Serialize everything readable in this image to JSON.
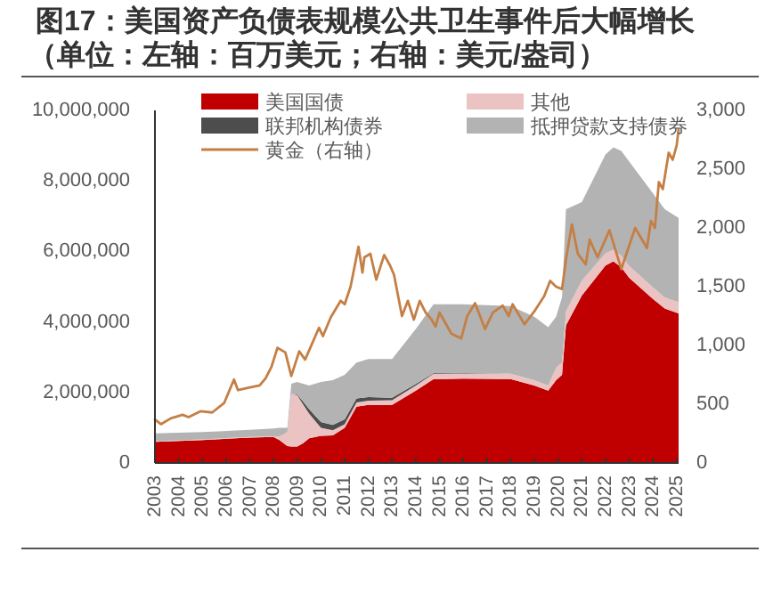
{
  "chart_data": {
    "type": "area",
    "stacked": true,
    "title": "图17：美国资产负债表规模公共卫生事件后大幅增长",
    "subtitle": "（单位：左轴：百万美元；右轴：美元/盎司）",
    "x": [
      "2003-01",
      "2005-01",
      "2007-01",
      "2008-01",
      "2008-04",
      "2008-08",
      "2008-10",
      "2009-01",
      "2009-04",
      "2009-07",
      "2010-01",
      "2010-07",
      "2011-01",
      "2011-07",
      "2012-01",
      "2013-01",
      "2014-01",
      "2014-10",
      "2016-01",
      "2018-01",
      "2019-01",
      "2019-08",
      "2019-12",
      "2020-03",
      "2020-05",
      "2021-01",
      "2022-01",
      "2022-05",
      "2022-09",
      "2023-01",
      "2024-01",
      "2024-07",
      "2025-02"
    ],
    "series": [
      {
        "name": "美国国债",
        "color": "#c00000",
        "values": [
          600000,
          650000,
          720000,
          740000,
          650000,
          480000,
          470000,
          470000,
          560000,
          700000,
          770000,
          780000,
          1000000,
          1600000,
          1650000,
          1650000,
          2050000,
          2380000,
          2390000,
          2380000,
          2200000,
          2050000,
          2350000,
          2500000,
          3900000,
          4750000,
          5600000,
          5720000,
          5550000,
          5250000,
          4650000,
          4380000,
          4240000
        ]
      },
      {
        "name": "其他",
        "color": "#ecc3c3",
        "values": [
          20000,
          20000,
          20000,
          20000,
          100000,
          400000,
          1500000,
          1450000,
          1100000,
          700000,
          230000,
          150000,
          100000,
          120000,
          120000,
          130000,
          150000,
          150000,
          150000,
          150000,
          150000,
          150000,
          350000,
          350000,
          400000,
          420000,
          350000,
          330000,
          330000,
          340000,
          330000,
          320000,
          320000
        ]
      },
      {
        "name": "联邦机构债券",
        "color": "#4d4d4d",
        "values": [
          0,
          0,
          0,
          0,
          0,
          0,
          0,
          20000,
          80000,
          130000,
          160000,
          150000,
          140000,
          110000,
          100000,
          70000,
          40000,
          20000,
          10000,
          0,
          0,
          0,
          0,
          0,
          0,
          0,
          0,
          0,
          0,
          0,
          0,
          0,
          0
        ]
      },
      {
        "name": "抵押贷款支持债券",
        "color": "#b3b3b3",
        "values": [
          220000,
          210000,
          200000,
          220000,
          250000,
          120000,
          280000,
          360000,
          510000,
          670000,
          1140000,
          1270000,
          1260000,
          1020000,
          1080000,
          1100000,
          1560000,
          1950000,
          1950000,
          1920000,
          1800000,
          1650000,
          1450000,
          1850000,
          2900000,
          2230000,
          2800000,
          2900000,
          2970000,
          2960000,
          2670000,
          2500000,
          2390000
        ]
      },
      {
        "name": "黄金（右轴）",
        "type": "line",
        "axis": "y2",
        "color": "#c47f45",
        "x": [
          "2003-01",
          "2003-04",
          "2003-09",
          "2004-03",
          "2004-06",
          "2004-12",
          "2005-06",
          "2005-12",
          "2006-05",
          "2006-07",
          "2006-12",
          "2007-06",
          "2007-09",
          "2007-12",
          "2008-03",
          "2008-07",
          "2008-10",
          "2009-02",
          "2009-05",
          "2009-12",
          "2010-02",
          "2010-06",
          "2010-11",
          "2011-01",
          "2011-04",
          "2011-08",
          "2011-10",
          "2011-11",
          "2012-02",
          "2012-05",
          "2012-09",
          "2012-12",
          "2013-02",
          "2013-06",
          "2013-09",
          "2013-12",
          "2014-03",
          "2014-06",
          "2014-09",
          "2014-11",
          "2015-01",
          "2015-07",
          "2015-12",
          "2016-03",
          "2016-07",
          "2016-12",
          "2017-04",
          "2017-09",
          "2017-12",
          "2018-02",
          "2018-08",
          "2019-01",
          "2019-06",
          "2019-09",
          "2019-12",
          "2020-03",
          "2020-05",
          "2020-08",
          "2020-11",
          "2021-03",
          "2021-05",
          "2021-09",
          "2022-03",
          "2022-09",
          "2023-04",
          "2023-10",
          "2023-12",
          "2024-02",
          "2024-04",
          "2024-06",
          "2024-09",
          "2024-11",
          "2025-01",
          "2025-02"
        ],
        "values": [
          370,
          330,
          380,
          410,
          390,
          440,
          430,
          510,
          710,
          620,
          640,
          660,
          720,
          820,
          980,
          940,
          740,
          950,
          880,
          1150,
          1080,
          1240,
          1380,
          1350,
          1500,
          1840,
          1620,
          1750,
          1780,
          1560,
          1770,
          1680,
          1600,
          1250,
          1380,
          1220,
          1380,
          1280,
          1220,
          1160,
          1280,
          1100,
          1060,
          1250,
          1360,
          1140,
          1280,
          1340,
          1250,
          1350,
          1180,
          1290,
          1420,
          1550,
          1500,
          1480,
          1730,
          2030,
          1780,
          1690,
          1900,
          1750,
          1980,
          1650,
          2000,
          1830,
          2060,
          2000,
          2390,
          2330,
          2640,
          2580,
          2700,
          2840
        ]
      }
    ],
    "xlim": [
      "2003-01",
      "2025-02"
    ],
    "xticks": [
      {
        "value": "2003-01",
        "label": "2003"
      },
      {
        "value": "2004-01",
        "label": "2004"
      },
      {
        "value": "2005-01",
        "label": "2005"
      },
      {
        "value": "2006-01",
        "label": "2006"
      },
      {
        "value": "2007-01",
        "label": "2007"
      },
      {
        "value": "2008-01",
        "label": "2008"
      },
      {
        "value": "2009-01",
        "label": "2009"
      },
      {
        "value": "2010-01",
        "label": "2010"
      },
      {
        "value": "2011-01",
        "label": "2011"
      },
      {
        "value": "2012-01",
        "label": "2012"
      },
      {
        "value": "2013-01",
        "label": "2013"
      },
      {
        "value": "2014-01",
        "label": "2014"
      },
      {
        "value": "2015-01",
        "label": "2015"
      },
      {
        "value": "2016-01",
        "label": "2016"
      },
      {
        "value": "2017-01",
        "label": "2017"
      },
      {
        "value": "2018-01",
        "label": "2018"
      },
      {
        "value": "2019-01",
        "label": "2019"
      },
      {
        "value": "2020-01",
        "label": "2020"
      },
      {
        "value": "2021-01",
        "label": "2021"
      },
      {
        "value": "2022-01",
        "label": "2022"
      },
      {
        "value": "2023-01",
        "label": "2023"
      },
      {
        "value": "2024-01",
        "label": "2024"
      },
      {
        "value": "2025-01",
        "label": "2025"
      }
    ],
    "ylim": [
      0,
      10000000
    ],
    "yticks": [
      0,
      {
        "value": 2000000,
        "label": "2,000,000"
      },
      {
        "value": 4000000,
        "label": "4,000,000"
      },
      {
        "value": 6000000,
        "label": "6,000,000"
      },
      {
        "value": 8000000,
        "label": "8,000,000"
      },
      {
        "value": 10000000,
        "label": "10,000,000"
      }
    ],
    "y2lim": [
      0,
      3000
    ],
    "y2ticks": [
      0,
      500,
      {
        "value": 1000,
        "label": "1,000"
      },
      {
        "value": 1500,
        "label": "1,500"
      },
      {
        "value": 2000,
        "label": "2,000"
      },
      {
        "value": 2500,
        "label": "2,500"
      },
      {
        "value": 3000,
        "label": "3,000"
      }
    ],
    "legend": "top",
    "grid": false
  }
}
